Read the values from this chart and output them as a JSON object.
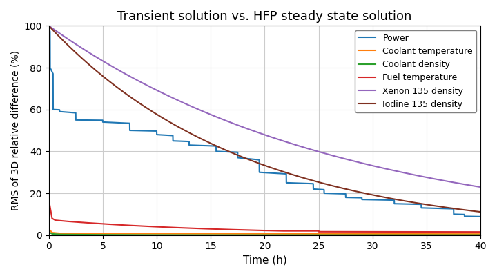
{
  "title": "Transient solution vs. HFP steady state solution",
  "xlabel": "Time (h)",
  "ylabel": "RMS of 3D relative difference (%)",
  "xlim": [
    0,
    40
  ],
  "ylim": [
    0,
    100
  ],
  "xticks": [
    0,
    5,
    10,
    15,
    20,
    25,
    30,
    35,
    40
  ],
  "yticks": [
    0,
    20,
    40,
    60,
    80,
    100
  ],
  "legend_entries": [
    "Power",
    "Coolant temperature",
    "Coolant density",
    "Fuel temperature",
    "Xenon 135 density",
    "Iodine 135 density"
  ],
  "colors": {
    "power": "#1f77b4",
    "coolant_temp": "#ff7f0e",
    "coolant_density": "#2ca02c",
    "fuel_temp": "#d62728",
    "xenon": "#9467bd",
    "iodine": "#7f3020"
  },
  "background": "#ffffff"
}
